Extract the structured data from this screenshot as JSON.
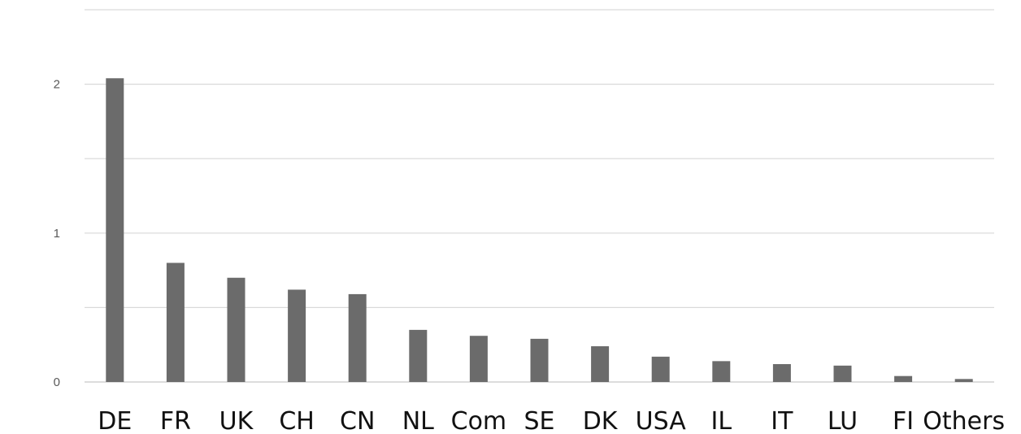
{
  "chart_data": {
    "type": "bar",
    "title": "",
    "xlabel": "",
    "ylabel": "",
    "categories": [
      "DE",
      "FR",
      "UK",
      "CH",
      "CN",
      "NL",
      "Com",
      "SE",
      "DK",
      "USA",
      "IL",
      "IT",
      "LU",
      "FI",
      "Others"
    ],
    "values": [
      2.04,
      0.8,
      0.7,
      0.62,
      0.59,
      0.35,
      0.31,
      0.29,
      0.24,
      0.17,
      0.14,
      0.12,
      0.11,
      0.04,
      0.02
    ],
    "ylim": [
      0,
      2.5
    ],
    "yticks": [
      {
        "value": 0,
        "label": "0"
      },
      {
        "value": 1,
        "label": "1"
      },
      {
        "value": 2,
        "label": "2"
      }
    ],
    "gridlines": [
      0,
      0.5,
      1,
      1.5,
      2,
      2.5
    ],
    "grid": true,
    "legend": "none",
    "colors": {
      "bar": "#6b6b6b",
      "grid": "#d9d9d9",
      "axis": "#c8c8c8"
    }
  }
}
